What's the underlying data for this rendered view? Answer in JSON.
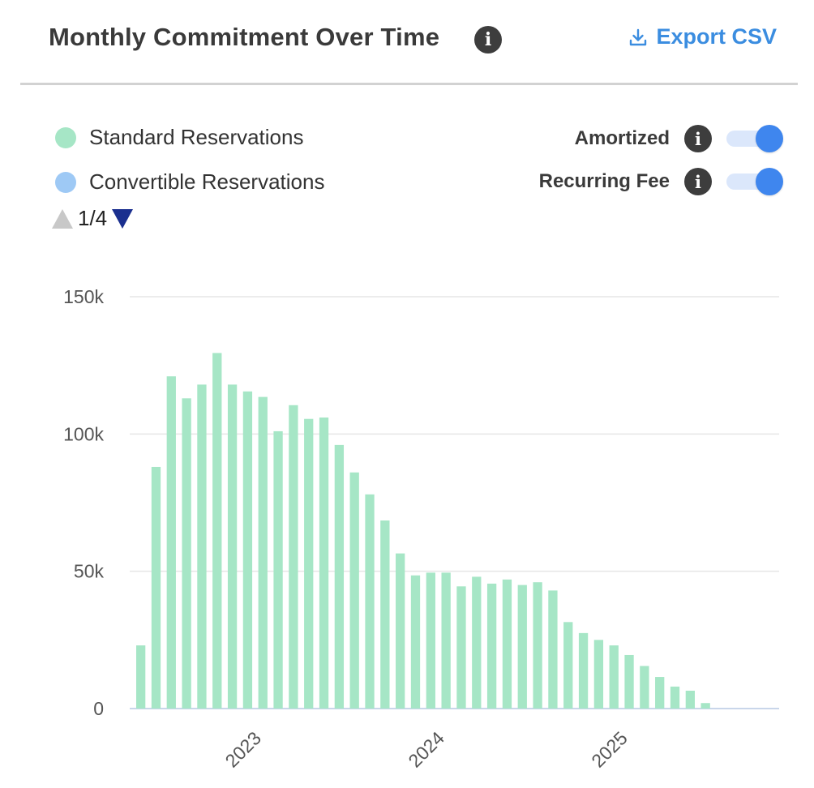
{
  "header": {
    "title": "Monthly Commitment Over Time",
    "export_label": "Export CSV"
  },
  "legend": {
    "items": [
      {
        "label": "Standard Reservations",
        "color": "#a6e6c6"
      },
      {
        "label": "Convertible Reservations",
        "color": "#9ec9f5"
      }
    ],
    "page": "1/4"
  },
  "toggles": [
    {
      "label": "Amortized",
      "on": true
    },
    {
      "label": "Recurring Fee",
      "on": true
    }
  ],
  "colors": {
    "accent": "#3b8de0",
    "toggle_on": "#3f86ee",
    "bar": "#a6e6c6",
    "pager_active": "#1a2f8f"
  },
  "chart_data": {
    "type": "bar",
    "stacked": true,
    "x_start": "2022-06",
    "x_tick_labels": [
      "2023",
      "2024",
      "2025"
    ],
    "y_tick_labels": [
      "0",
      "50k",
      "100k",
      "150k"
    ],
    "ylim": [
      0,
      150000
    ],
    "grid": true,
    "series": [
      {
        "name": "Standard Reservations",
        "color": "#a6e6c6",
        "values": [
          23000,
          88000,
          121000,
          113000,
          118000,
          129500,
          118000,
          115500,
          113500,
          101000,
          110500,
          105500,
          106000,
          96000,
          86000,
          78000,
          68500,
          56500,
          48500,
          49500,
          49500,
          44500,
          48000,
          45500,
          47000,
          45000,
          46000,
          43000,
          31500,
          27500,
          25000,
          23000,
          19500,
          15500,
          11500,
          8000,
          6500,
          2000,
          0,
          0,
          0,
          0
        ]
      },
      {
        "name": "Convertible Reservations",
        "color": "#9ec9f5",
        "values": [
          0,
          0,
          0,
          0,
          0,
          0,
          0,
          0,
          0,
          0,
          0,
          0,
          0,
          0,
          0,
          0,
          0,
          0,
          0,
          0,
          0,
          0,
          0,
          0,
          0,
          0,
          0,
          0,
          0,
          0,
          0,
          0,
          0,
          0,
          0,
          0,
          0,
          0,
          0,
          0,
          0,
          0
        ]
      }
    ]
  }
}
